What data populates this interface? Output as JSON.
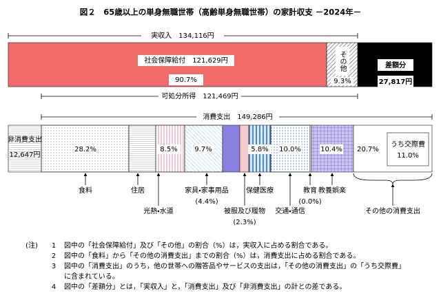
{
  "title": "図２　65歳以上の単身無職世帯（高齢単身無職世帯）の家計収支 －2024年－",
  "income": {
    "total": "実収入　134,116円",
    "social_security": "社会保障給付　121,629円",
    "social_security_pct": "90.7%",
    "other": "その他",
    "other_pct": "9.3%",
    "surplus": "差額分",
    "surplus_amount": "27,817円"
  },
  "disposable": "可処分所得　121,469円",
  "consumption": "消費支出　149,286円",
  "non_consumption": {
    "label": "非消費支出",
    "amount": "12,647円"
  },
  "segment_pcts": [
    "28.2%",
    "8.5%",
    "9.7%",
    "5.8%",
    "10.0%",
    "10.4%",
    "20.7%"
  ],
  "entertainment": {
    "label": "うち交際費",
    "pct": "11.0%"
  },
  "categories": [
    {
      "label": "食料"
    },
    {
      "label": "住居"
    },
    {
      "label": "光熱・水道"
    },
    {
      "label": "家具・家事用品",
      "pct": "(4.4%)"
    },
    {
      "label": "被服及び履物",
      "pct": "(2.3%)"
    },
    {
      "label": "保健医療"
    },
    {
      "label": "交通・通信"
    },
    {
      "label": "教育",
      "pct": "(0.0%)"
    },
    {
      "label": "教養娯楽"
    },
    {
      "label": "その他の消費支出"
    }
  ],
  "notes": {
    "marker": "(注)",
    "items": [
      {
        "num": "1",
        "lines": [
          "図中の「社会保障給付」及び「その他」の割合（%）は，実収入に占める割合である。"
        ]
      },
      {
        "num": "2",
        "lines": [
          "図中の「食料」から「その他の消費支出」までの割合（%）は，消費支出に占める割合である。"
        ]
      },
      {
        "num": "3",
        "lines": [
          "図中の「消費支出」のうち，他の世帯への贈答品やサービスの支出は，「その他の消費支出」の「うち交際費」",
          "に含まれている。"
        ]
      },
      {
        "num": "4",
        "lines": [
          "図中の「差額分」とは，「実収入」と，「消費支出」及び「非消費支出」の計との差である。"
        ]
      }
    ]
  }
}
